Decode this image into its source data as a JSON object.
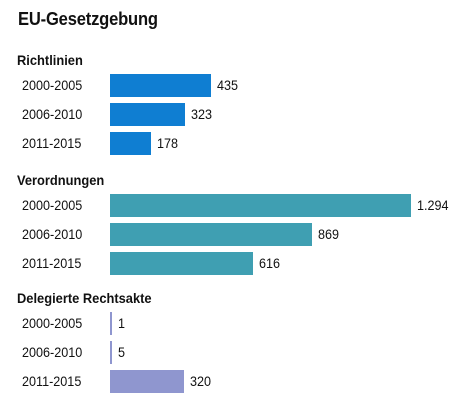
{
  "chart_data": {
    "type": "bar",
    "orientation": "horizontal",
    "title": "EU-Gesetzgebung",
    "groups": [
      {
        "name": "Richtlinien",
        "color": "#0f7ed2",
        "categories": [
          "2000-2005",
          "2006-2010",
          "2011-2015"
        ],
        "values": [
          435,
          323,
          178
        ],
        "value_labels": [
          "435",
          "323",
          "178"
        ]
      },
      {
        "name": "Verordnungen",
        "color": "#3f9fb2",
        "categories": [
          "2000-2005",
          "2006-2010",
          "2011-2015"
        ],
        "values": [
          1294,
          869,
          616
        ],
        "value_labels": [
          "1.294",
          "869",
          "616"
        ]
      },
      {
        "name": "Delegierte Rechtsakte",
        "color": "#8f96cf",
        "categories": [
          "2000-2005",
          "2006-2010",
          "2011-2015"
        ],
        "values": [
          1,
          5,
          320
        ],
        "value_labels": [
          "1",
          "5",
          "320"
        ]
      }
    ],
    "xlim": [
      0,
      1294
    ],
    "grid": false,
    "legend": "none"
  }
}
